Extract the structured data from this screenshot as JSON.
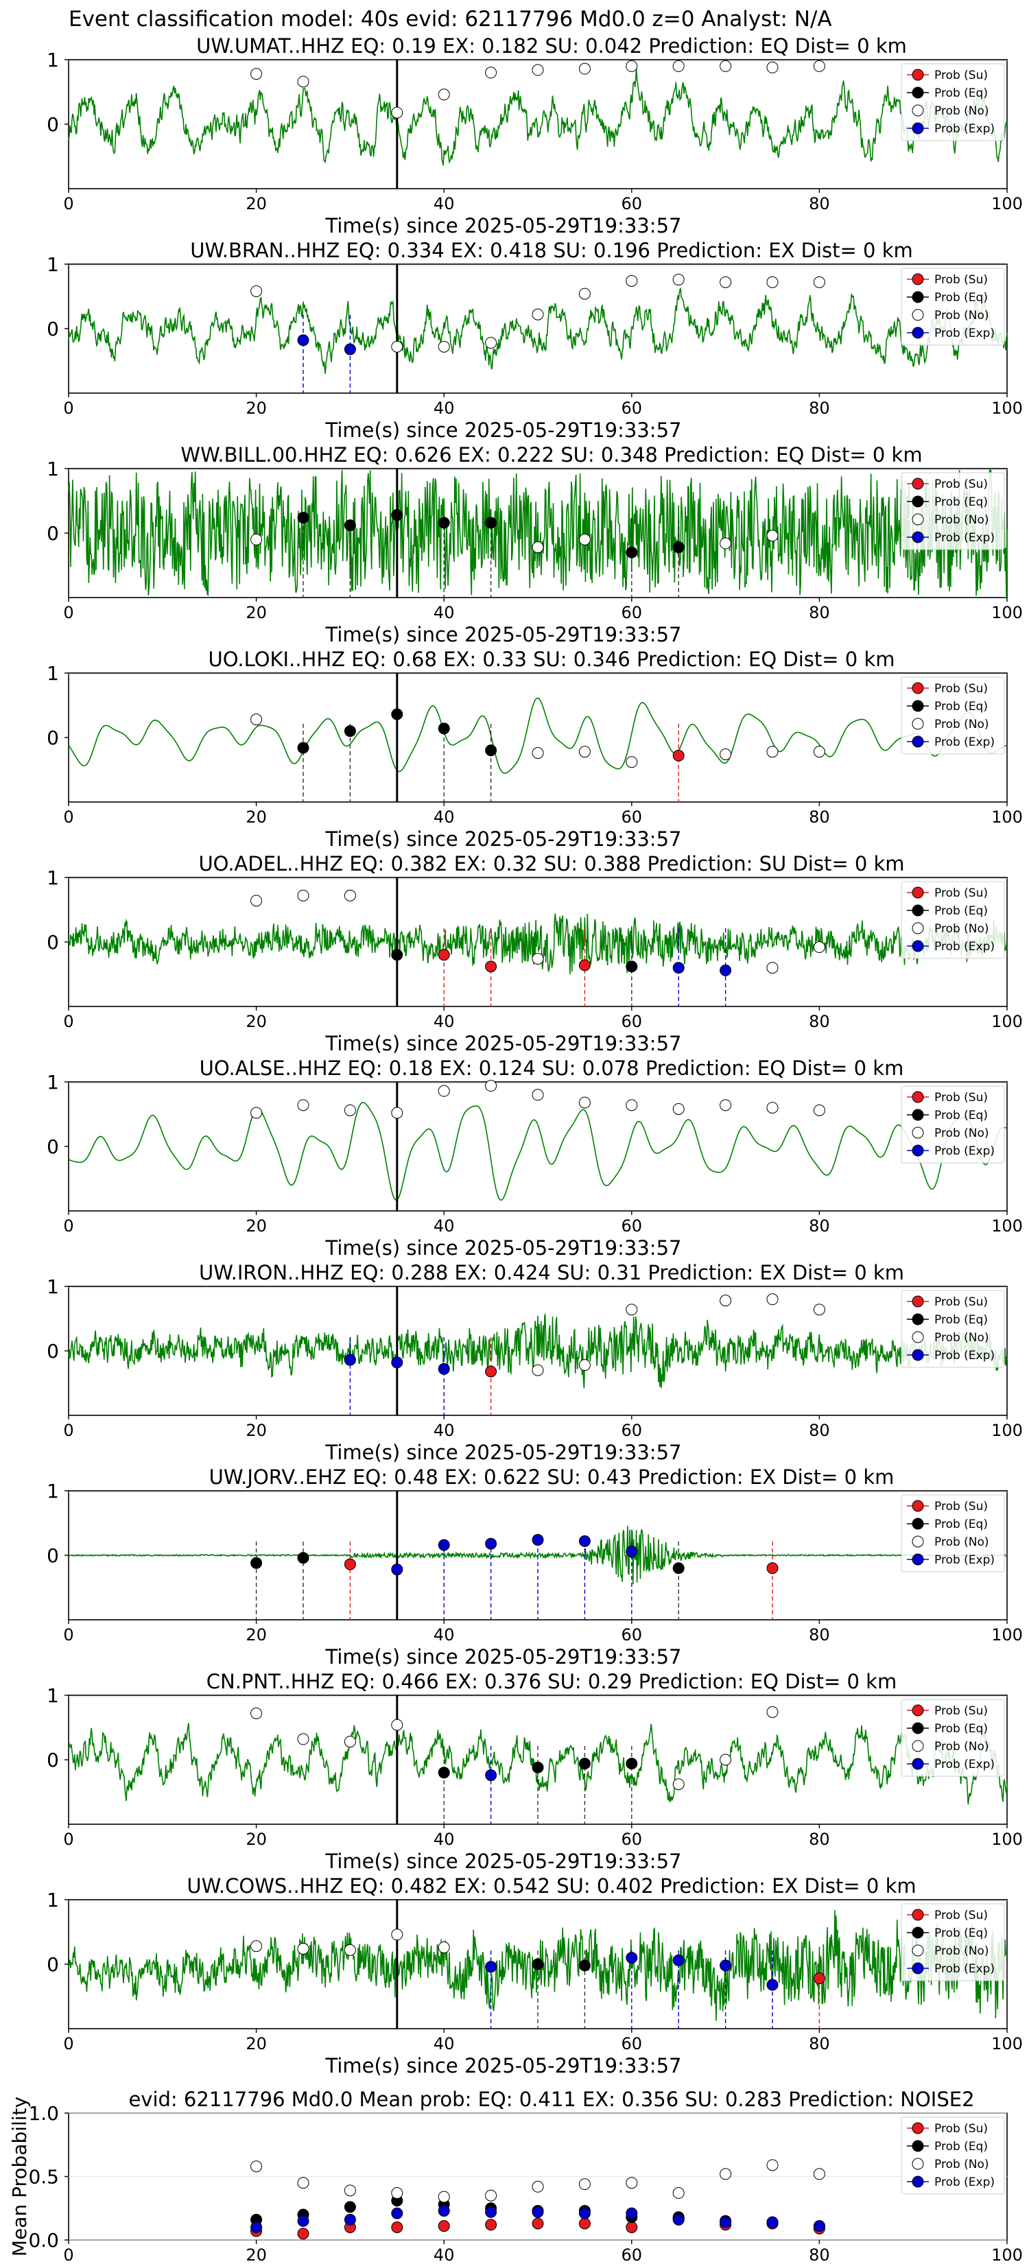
{
  "figure": {
    "suptitle": "Event classification model: 40s evid: 62117796 Md0.0 z=0 Analyst: N/A",
    "xlabel": "Time(s) since 2025-05-29T19:33:57",
    "mean_ylabel": "Mean Probability"
  },
  "legend": {
    "entries": [
      {
        "label": "Prob (Su)",
        "fill": "#e41a1c"
      },
      {
        "label": "Prob (Eq)",
        "fill": "#000000"
      },
      {
        "label": "Prob (No)",
        "fill": "#ffffff"
      },
      {
        "label": "Prob (Exp)",
        "fill": "#0000cc"
      }
    ]
  },
  "colors": {
    "waveform": "#008000",
    "su": "#e41a1c",
    "eq": "#000000",
    "no": "#ffffff",
    "exp": "#0000cc",
    "arrival_line": "#000000"
  },
  "chart_data": [
    {
      "type": "line",
      "title": "UW.UMAT..HHZ   EQ: 0.19  EX: 0.182  SU: 0.042   Prediction: EQ    Dist= 0 km",
      "xlim": [
        0,
        100
      ],
      "xticks": [
        "0",
        "20",
        "40",
        "60",
        "80",
        "100"
      ],
      "yticks": [
        "1",
        "0"
      ],
      "arrival": 35,
      "waveform": {
        "style": "noisy",
        "seed": 11,
        "amp": 0.75
      },
      "points": [
        {
          "t": 20,
          "cls": "no",
          "p": 0.89
        },
        {
          "t": 25,
          "cls": "no",
          "p": 0.83
        },
        {
          "t": 35,
          "cls": "no",
          "p": 0.59
        },
        {
          "t": 40,
          "cls": "no",
          "p": 0.73
        },
        {
          "t": 45,
          "cls": "no",
          "p": 0.9
        },
        {
          "t": 50,
          "cls": "no",
          "p": 0.92
        },
        {
          "t": 55,
          "cls": "no",
          "p": 0.93
        },
        {
          "t": 60,
          "cls": "no",
          "p": 0.95
        },
        {
          "t": 65,
          "cls": "no",
          "p": 0.95
        },
        {
          "t": 70,
          "cls": "no",
          "p": 0.95
        },
        {
          "t": 75,
          "cls": "no",
          "p": 0.94
        },
        {
          "t": 80,
          "cls": "no",
          "p": 0.95
        }
      ]
    },
    {
      "type": "line",
      "title": "UW.BRAN..HHZ   EQ: 0.334  EX: 0.418  SU: 0.196   Prediction: EX    Dist= 0 km",
      "xlim": [
        0,
        100
      ],
      "xticks": [
        "0",
        "20",
        "40",
        "60",
        "80",
        "100"
      ],
      "yticks": [
        "1",
        "0"
      ],
      "arrival": 35,
      "waveform": {
        "style": "noisy",
        "seed": 23,
        "amp": 0.7
      },
      "points": [
        {
          "t": 20,
          "cls": "no",
          "p": 0.79
        },
        {
          "t": 25,
          "cls": "exp",
          "p": 0.41
        },
        {
          "t": 30,
          "cls": "exp",
          "p": 0.34
        },
        {
          "t": 35,
          "cls": "no",
          "p": 0.36
        },
        {
          "t": 40,
          "cls": "no",
          "p": 0.36
        },
        {
          "t": 45,
          "cls": "no",
          "p": 0.39
        },
        {
          "t": 50,
          "cls": "no",
          "p": 0.61
        },
        {
          "t": 55,
          "cls": "no",
          "p": 0.77
        },
        {
          "t": 60,
          "cls": "no",
          "p": 0.87
        },
        {
          "t": 65,
          "cls": "no",
          "p": 0.88
        },
        {
          "t": 70,
          "cls": "no",
          "p": 0.86
        },
        {
          "t": 75,
          "cls": "no",
          "p": 0.86
        },
        {
          "t": 80,
          "cls": "no",
          "p": 0.86
        }
      ]
    },
    {
      "type": "line",
      "title": "WW.BILL.00.HHZ   EQ: 0.626  EX: 0.222  SU: 0.348   Prediction: EQ    Dist= 0 km",
      "xlim": [
        0,
        100
      ],
      "xticks": [
        "0",
        "20",
        "40",
        "60",
        "80",
        "100"
      ],
      "yticks": [
        "1",
        "0"
      ],
      "arrival": 35,
      "waveform": {
        "style": "dense",
        "seed": 37,
        "amp": 0.85
      },
      "points": [
        {
          "t": 20,
          "cls": "no",
          "p": 0.45
        },
        {
          "t": 25,
          "cls": "eq",
          "p": 0.62
        },
        {
          "t": 30,
          "cls": "eq",
          "p": 0.56
        },
        {
          "t": 35,
          "cls": "eq",
          "p": 0.64
        },
        {
          "t": 40,
          "cls": "eq",
          "p": 0.58
        },
        {
          "t": 45,
          "cls": "eq",
          "p": 0.58
        },
        {
          "t": 50,
          "cls": "no",
          "p": 0.39
        },
        {
          "t": 55,
          "cls": "no",
          "p": 0.45
        },
        {
          "t": 60,
          "cls": "eq",
          "p": 0.35
        },
        {
          "t": 65,
          "cls": "eq",
          "p": 0.39
        },
        {
          "t": 70,
          "cls": "no",
          "p": 0.42
        },
        {
          "t": 75,
          "cls": "no",
          "p": 0.48
        }
      ]
    },
    {
      "type": "line",
      "title": "UO.LOKI..HHZ   EQ: 0.68  EX: 0.33  SU: 0.346   Prediction: EQ    Dist= 0 km",
      "xlim": [
        0,
        100
      ],
      "xticks": [
        "0",
        "20",
        "40",
        "60",
        "80",
        "100"
      ],
      "yticks": [
        "1",
        "0"
      ],
      "arrival": 35,
      "waveform": {
        "style": "smooth",
        "seed": 41,
        "amp": 0.6
      },
      "points": [
        {
          "t": 20,
          "cls": "no",
          "p": 0.64
        },
        {
          "t": 25,
          "cls": "eq",
          "p": 0.42
        },
        {
          "t": 30,
          "cls": "eq",
          "p": 0.55
        },
        {
          "t": 35,
          "cls": "eq",
          "p": 0.68
        },
        {
          "t": 40,
          "cls": "eq",
          "p": 0.57
        },
        {
          "t": 45,
          "cls": "eq",
          "p": 0.4
        },
        {
          "t": 50,
          "cls": "no",
          "p": 0.38
        },
        {
          "t": 55,
          "cls": "no",
          "p": 0.39
        },
        {
          "t": 60,
          "cls": "no",
          "p": 0.31
        },
        {
          "t": 65,
          "cls": "su",
          "p": 0.36
        },
        {
          "t": 70,
          "cls": "no",
          "p": 0.37
        },
        {
          "t": 75,
          "cls": "no",
          "p": 0.39
        },
        {
          "t": 80,
          "cls": "no",
          "p": 0.39
        }
      ]
    },
    {
      "type": "line",
      "title": "UO.ADEL..HHZ   EQ: 0.382  EX: 0.32  SU: 0.388   Prediction: SU    Dist= 0 km",
      "xlim": [
        0,
        100
      ],
      "xticks": [
        "0",
        "20",
        "40",
        "60",
        "80",
        "100"
      ],
      "yticks": [
        "1",
        "0"
      ],
      "arrival": 35,
      "waveform": {
        "style": "burst",
        "seed": 53,
        "amp": 0.55
      },
      "points": [
        {
          "t": 20,
          "cls": "no",
          "p": 0.82
        },
        {
          "t": 25,
          "cls": "no",
          "p": 0.86
        },
        {
          "t": 30,
          "cls": "no",
          "p": 0.86
        },
        {
          "t": 35,
          "cls": "eq",
          "p": 0.4
        },
        {
          "t": 40,
          "cls": "su",
          "p": 0.4
        },
        {
          "t": 45,
          "cls": "su",
          "p": 0.31
        },
        {
          "t": 50,
          "cls": "no",
          "p": 0.37
        },
        {
          "t": 55,
          "cls": "su",
          "p": 0.32
        },
        {
          "t": 60,
          "cls": "eq",
          "p": 0.31
        },
        {
          "t": 65,
          "cls": "exp",
          "p": 0.3
        },
        {
          "t": 70,
          "cls": "exp",
          "p": 0.28
        },
        {
          "t": 75,
          "cls": "no",
          "p": 0.3
        },
        {
          "t": 80,
          "cls": "no",
          "p": 0.46
        }
      ]
    },
    {
      "type": "line",
      "title": "UO.ALSE..HHZ   EQ: 0.18  EX: 0.124  SU: 0.078   Prediction: EQ    Dist= 0 km",
      "xlim": [
        0,
        100
      ],
      "xticks": [
        "0",
        "20",
        "40",
        "60",
        "80",
        "100"
      ],
      "yticks": [
        "1",
        "0"
      ],
      "arrival": 35,
      "waveform": {
        "style": "smooth",
        "seed": 67,
        "amp": 0.8
      },
      "points": [
        {
          "t": 20,
          "cls": "no",
          "p": 0.76
        },
        {
          "t": 25,
          "cls": "no",
          "p": 0.82
        },
        {
          "t": 30,
          "cls": "no",
          "p": 0.78
        },
        {
          "t": 35,
          "cls": "no",
          "p": 0.76
        },
        {
          "t": 40,
          "cls": "no",
          "p": 0.93
        },
        {
          "t": 45,
          "cls": "no",
          "p": 0.97
        },
        {
          "t": 50,
          "cls": "no",
          "p": 0.9
        },
        {
          "t": 55,
          "cls": "no",
          "p": 0.84
        },
        {
          "t": 60,
          "cls": "no",
          "p": 0.82
        },
        {
          "t": 65,
          "cls": "no",
          "p": 0.79
        },
        {
          "t": 70,
          "cls": "no",
          "p": 0.82
        },
        {
          "t": 75,
          "cls": "no",
          "p": 0.8
        },
        {
          "t": 80,
          "cls": "no",
          "p": 0.78
        }
      ]
    },
    {
      "type": "line",
      "title": "UW.IRON..HHZ   EQ: 0.288  EX: 0.424  SU: 0.31   Prediction: EX    Dist= 0 km",
      "xlim": [
        0,
        100
      ],
      "xticks": [
        "0",
        "20",
        "40",
        "60",
        "80",
        "100"
      ],
      "yticks": [
        "1",
        "0"
      ],
      "arrival": 35,
      "waveform": {
        "style": "burst",
        "seed": 79,
        "amp": 0.6
      },
      "points": [
        {
          "t": 30,
          "cls": "exp",
          "p": 0.43
        },
        {
          "t": 35,
          "cls": "exp",
          "p": 0.41
        },
        {
          "t": 40,
          "cls": "exp",
          "p": 0.36
        },
        {
          "t": 45,
          "cls": "su",
          "p": 0.34
        },
        {
          "t": 50,
          "cls": "no",
          "p": 0.35
        },
        {
          "t": 55,
          "cls": "no",
          "p": 0.39
        },
        {
          "t": 60,
          "cls": "no",
          "p": 0.82
        },
        {
          "t": 70,
          "cls": "no",
          "p": 0.89
        },
        {
          "t": 75,
          "cls": "no",
          "p": 0.9
        },
        {
          "t": 80,
          "cls": "no",
          "p": 0.82
        }
      ]
    },
    {
      "type": "line",
      "title": "UW.JORV..EHZ   EQ: 0.48  EX: 0.622  SU: 0.43   Prediction: EX    Dist= 0 km",
      "xlim": [
        0,
        100
      ],
      "xticks": [
        "0",
        "20",
        "40",
        "60",
        "80",
        "100"
      ],
      "yticks": [
        "1",
        "0"
      ],
      "arrival": 35,
      "waveform": {
        "style": "quiet",
        "seed": 83,
        "amp": 0.5
      },
      "points": [
        {
          "t": 20,
          "cls": "eq",
          "p": 0.44
        },
        {
          "t": 25,
          "cls": "eq",
          "p": 0.48
        },
        {
          "t": 30,
          "cls": "su",
          "p": 0.43
        },
        {
          "t": 35,
          "cls": "exp",
          "p": 0.39
        },
        {
          "t": 40,
          "cls": "exp",
          "p": 0.58
        },
        {
          "t": 45,
          "cls": "exp",
          "p": 0.59
        },
        {
          "t": 50,
          "cls": "exp",
          "p": 0.62
        },
        {
          "t": 55,
          "cls": "exp",
          "p": 0.61
        },
        {
          "t": 60,
          "cls": "exp",
          "p": 0.53
        },
        {
          "t": 65,
          "cls": "eq",
          "p": 0.4
        },
        {
          "t": 75,
          "cls": "su",
          "p": 0.4
        }
      ]
    },
    {
      "type": "line",
      "title": "CN.PNT..HHZ   EQ: 0.466  EX: 0.376  SU: 0.29   Prediction: EQ    Dist= 0 km",
      "xlim": [
        0,
        100
      ],
      "xticks": [
        "0",
        "20",
        "40",
        "60",
        "80",
        "100"
      ],
      "yticks": [
        "1",
        "0"
      ],
      "arrival": 35,
      "waveform": {
        "style": "noisy",
        "seed": 97,
        "amp": 0.75
      },
      "points": [
        {
          "t": 20,
          "cls": "no",
          "p": 0.86
        },
        {
          "t": 25,
          "cls": "no",
          "p": 0.66
        },
        {
          "t": 30,
          "cls": "no",
          "p": 0.64
        },
        {
          "t": 35,
          "cls": "no",
          "p": 0.77
        },
        {
          "t": 40,
          "cls": "eq",
          "p": 0.4
        },
        {
          "t": 45,
          "cls": "exp",
          "p": 0.38
        },
        {
          "t": 50,
          "cls": "eq",
          "p": 0.44
        },
        {
          "t": 55,
          "cls": "eq",
          "p": 0.47
        },
        {
          "t": 60,
          "cls": "eq",
          "p": 0.47
        },
        {
          "t": 65,
          "cls": "no",
          "p": 0.31
        },
        {
          "t": 70,
          "cls": "no",
          "p": 0.5
        },
        {
          "t": 75,
          "cls": "no",
          "p": 0.87
        }
      ]
    },
    {
      "type": "line",
      "title": "UW.COWS..HHZ   EQ: 0.482  EX: 0.542  SU: 0.402   Prediction: EX    Dist= 0 km",
      "xlim": [
        0,
        100
      ],
      "xticks": [
        "0",
        "20",
        "40",
        "60",
        "80",
        "100"
      ],
      "yticks": [
        "1",
        "0"
      ],
      "arrival": 35,
      "waveform": {
        "style": "growing",
        "seed": 101,
        "amp": 0.75
      },
      "points": [
        {
          "t": 20,
          "cls": "no",
          "p": 0.64
        },
        {
          "t": 25,
          "cls": "no",
          "p": 0.62
        },
        {
          "t": 30,
          "cls": "no",
          "p": 0.61
        },
        {
          "t": 35,
          "cls": "no",
          "p": 0.73
        },
        {
          "t": 40,
          "cls": "no",
          "p": 0.63
        },
        {
          "t": 45,
          "cls": "exp",
          "p": 0.48
        },
        {
          "t": 50,
          "cls": "eq",
          "p": 0.5
        },
        {
          "t": 55,
          "cls": "eq",
          "p": 0.49
        },
        {
          "t": 60,
          "cls": "exp",
          "p": 0.55
        },
        {
          "t": 65,
          "cls": "exp",
          "p": 0.53
        },
        {
          "t": 70,
          "cls": "exp",
          "p": 0.49
        },
        {
          "t": 75,
          "cls": "exp",
          "p": 0.34
        },
        {
          "t": 80,
          "cls": "su",
          "p": 0.39
        }
      ]
    },
    {
      "type": "scatter",
      "title": "evid: 62117796  Md0.0   Mean prob:   EQ: 0.411  EX: 0.356  SU: 0.283   Prediction: NOISE2",
      "xlabel": "",
      "ylabel": "Mean Probability",
      "xlim": [
        0,
        100
      ],
      "ylim": [
        0,
        1
      ],
      "xticks": [
        "0",
        "20",
        "40",
        "60",
        "80",
        "100"
      ],
      "yticks": [
        "1.0",
        "0.5",
        "0.0"
      ],
      "x": [
        20,
        25,
        30,
        35,
        40,
        45,
        50,
        55,
        60,
        65,
        70,
        75,
        80
      ],
      "series": [
        {
          "name": "Prob (Su)",
          "cls": "su",
          "values": [
            0.07,
            0.05,
            0.1,
            0.1,
            0.11,
            0.12,
            0.13,
            0.13,
            0.1,
            0.17,
            0.12,
            0.13,
            0.09
          ]
        },
        {
          "name": "Prob (Eq)",
          "cls": "eq",
          "values": [
            0.16,
            0.2,
            0.26,
            0.31,
            0.28,
            0.25,
            0.23,
            0.23,
            0.18,
            0.18,
            0.15,
            0.14,
            0.11
          ]
        },
        {
          "name": "Prob (No)",
          "cls": "no",
          "values": [
            0.58,
            0.45,
            0.39,
            0.37,
            0.34,
            0.35,
            0.42,
            0.44,
            0.45,
            0.37,
            0.52,
            0.59,
            0.52
          ]
        },
        {
          "name": "Prob (Exp)",
          "cls": "exp",
          "values": [
            0.1,
            0.15,
            0.16,
            0.21,
            0.23,
            0.22,
            0.22,
            0.21,
            0.21,
            0.16,
            0.14,
            0.14,
            0.11
          ]
        }
      ]
    }
  ]
}
